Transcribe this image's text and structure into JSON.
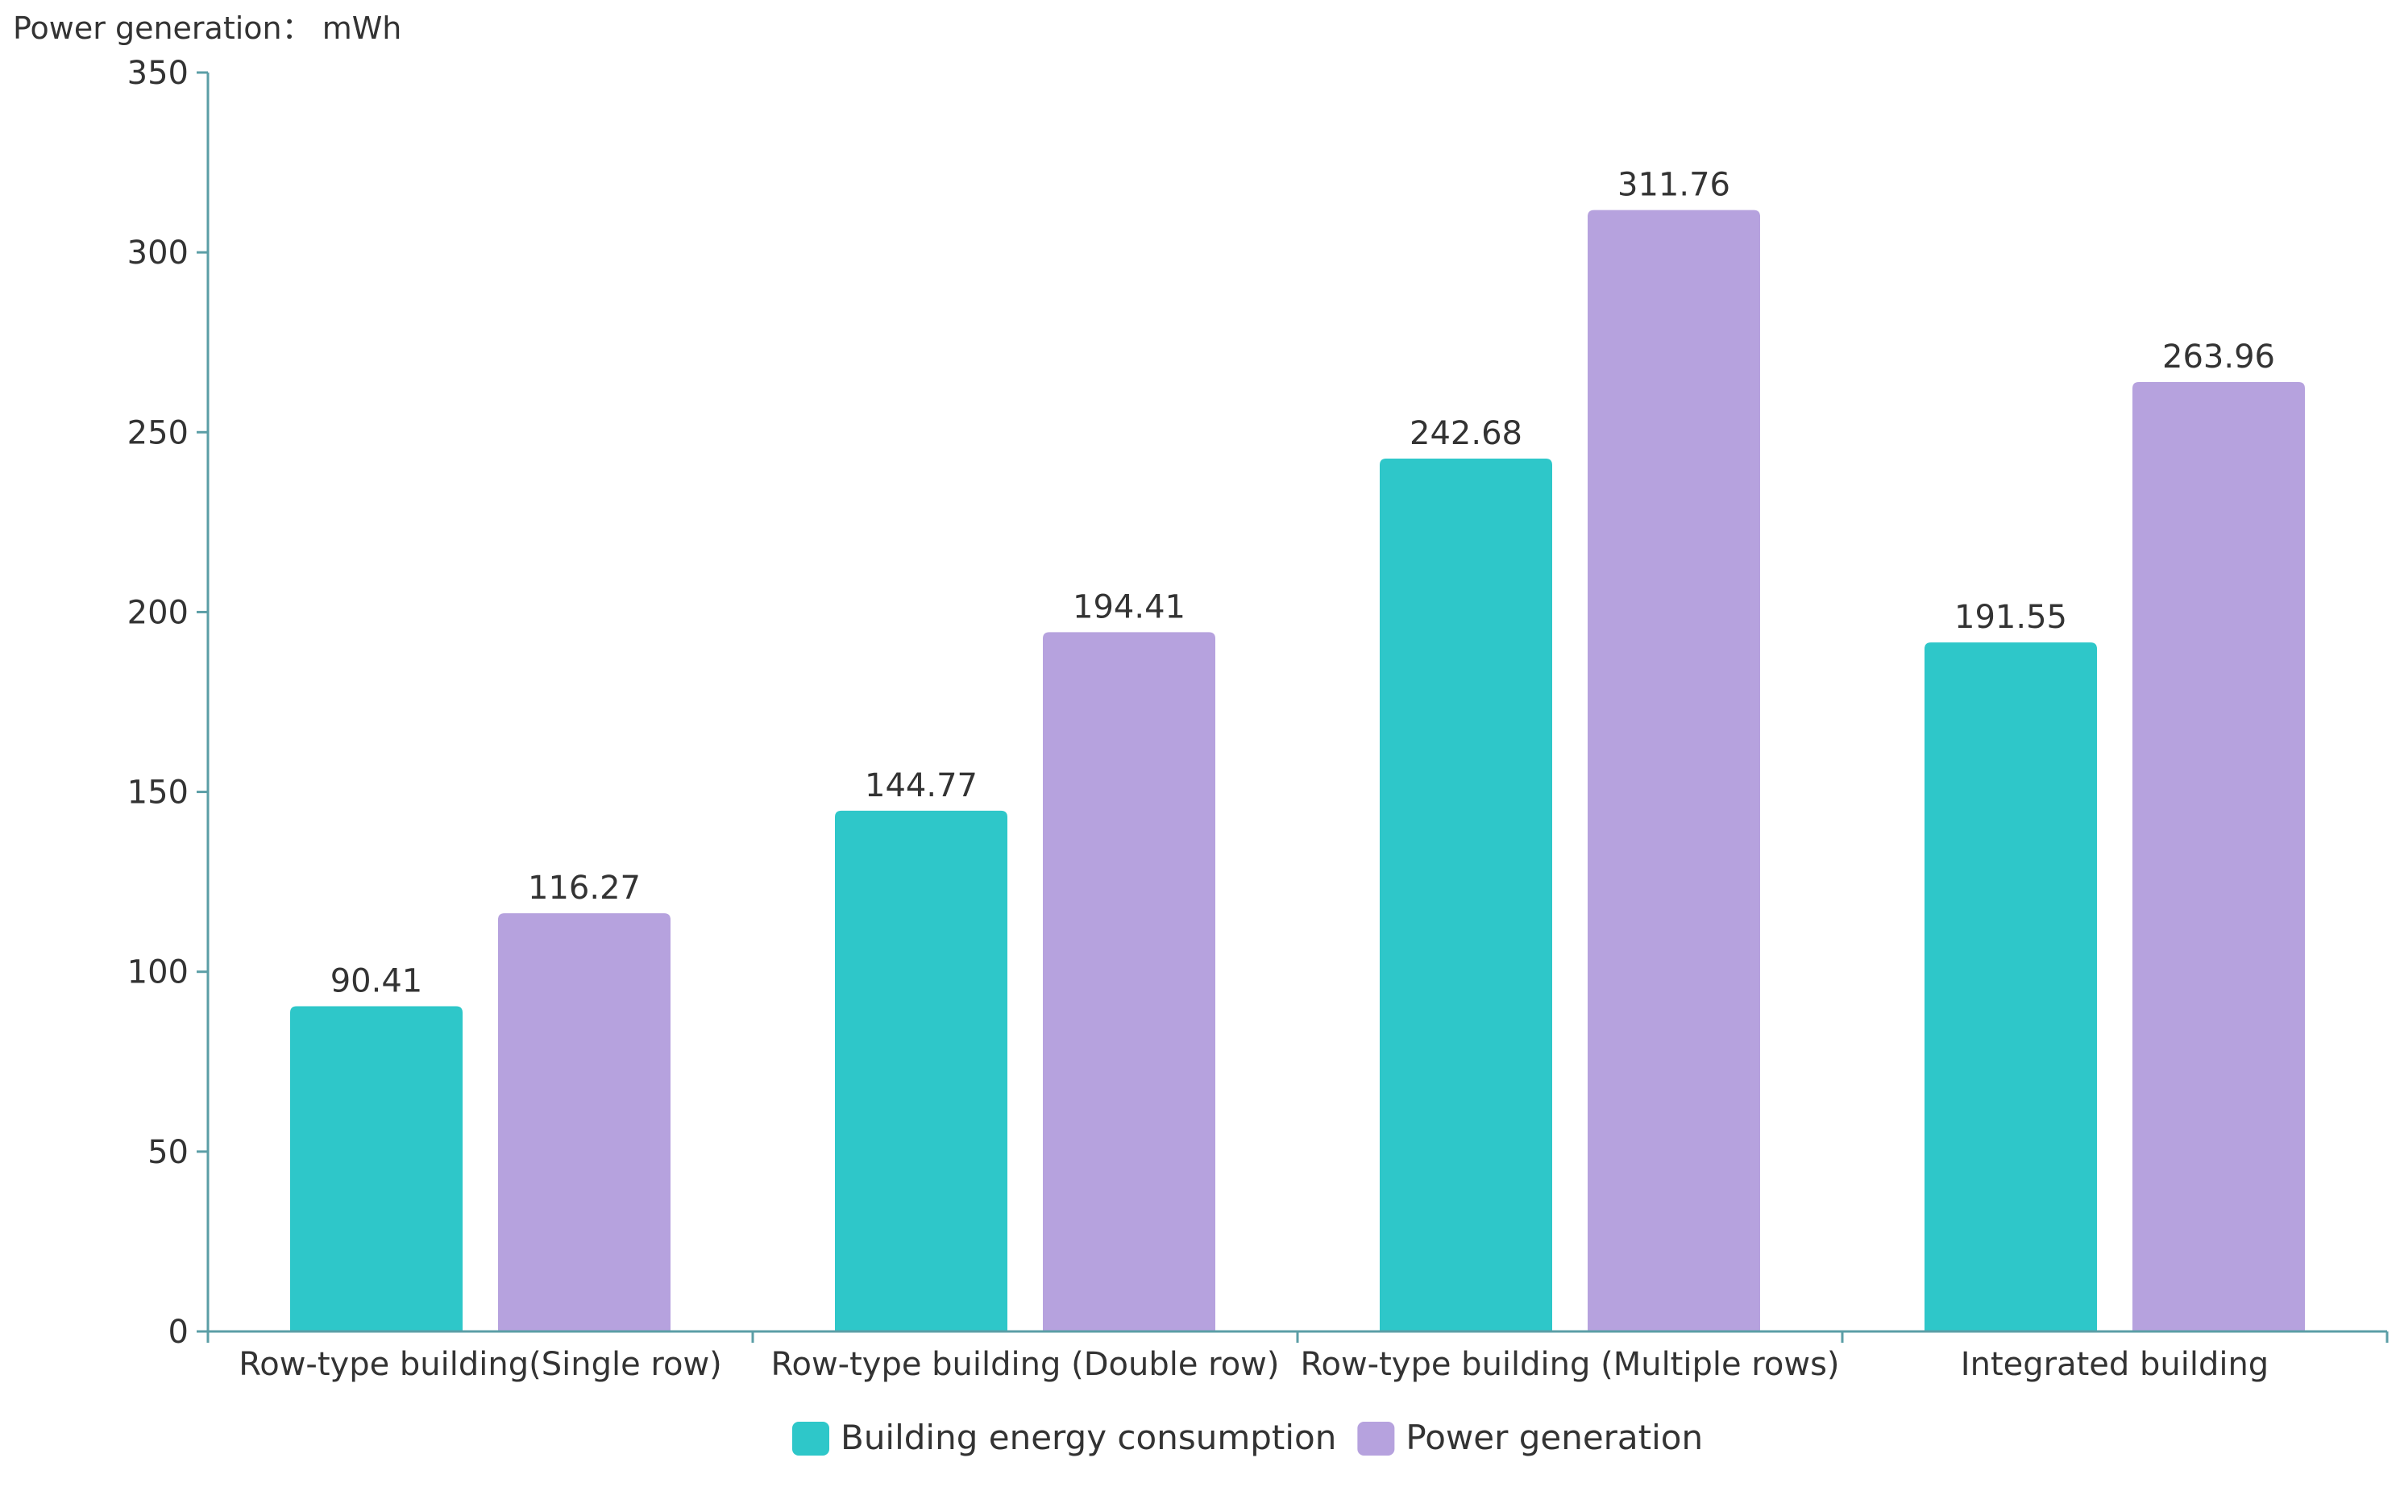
{
  "chart_data": {
    "type": "bar",
    "ylabel": "Power generation： mWh",
    "xlabel": "",
    "title": "",
    "ylim": [
      0,
      350
    ],
    "yticks": [
      0,
      50,
      100,
      150,
      200,
      250,
      300,
      350
    ],
    "categories": [
      "Row-type building(Single row)",
      "Row-type building (Double row)",
      "Row-type building (Multiple rows)",
      "Integrated building"
    ],
    "series": [
      {
        "name": "Building energy consumption",
        "color": "#2ec7c9",
        "values": [
          90.41,
          144.77,
          242.68,
          191.55
        ]
      },
      {
        "name": "Power generation",
        "color": "#b6a2de",
        "values": [
          116.27,
          194.41,
          311.76,
          263.96
        ]
      }
    ],
    "legend_position": "bottom-center",
    "grid": false
  }
}
